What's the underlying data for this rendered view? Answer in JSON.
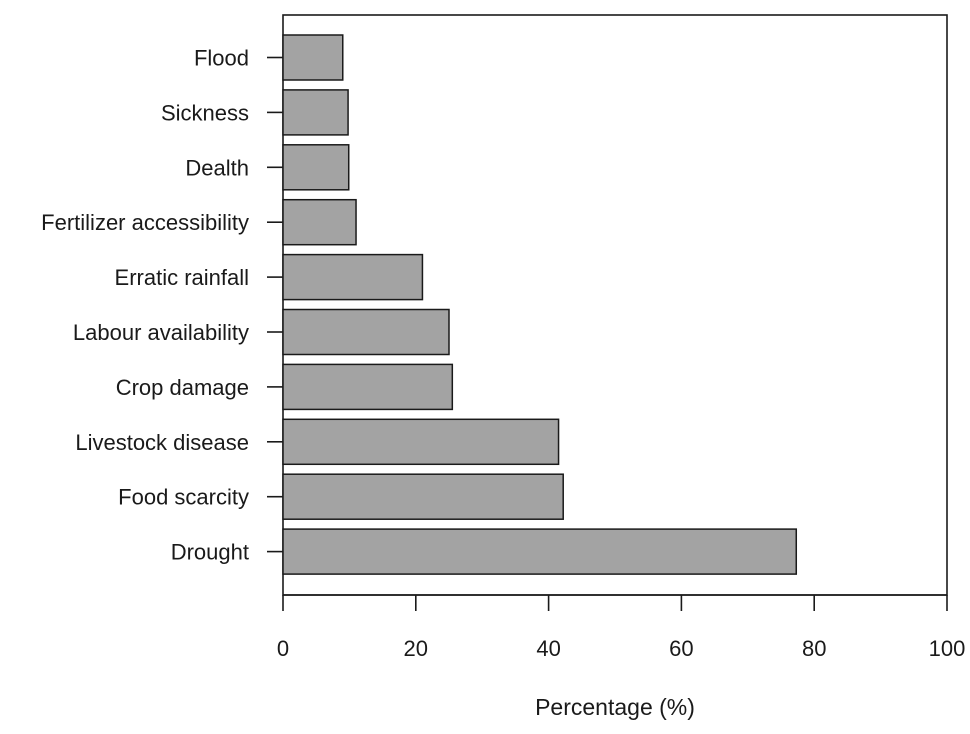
{
  "chart_data": {
    "type": "bar",
    "orientation": "horizontal",
    "categories": [
      "Flood",
      "Sickness",
      "Dealth",
      "Fertilizer accessibility",
      "Erratic rainfall",
      "Labour availability",
      "Crop damage",
      "Livestock disease",
      "Food scarcity",
      "Drought"
    ],
    "values": [
      9,
      9.8,
      9.9,
      11,
      21,
      25,
      25.5,
      41.5,
      42.2,
      77.3
    ],
    "xlabel": "Percentage (%)",
    "ylabel": "",
    "xlim": [
      0,
      100
    ],
    "xticks": [
      0,
      20,
      40,
      60,
      80,
      100
    ],
    "grid": false,
    "colors": {
      "bar_fill": "#a3a3a3",
      "bar_stroke": "#1a1a1a",
      "axis": "#1a1a1a"
    }
  }
}
